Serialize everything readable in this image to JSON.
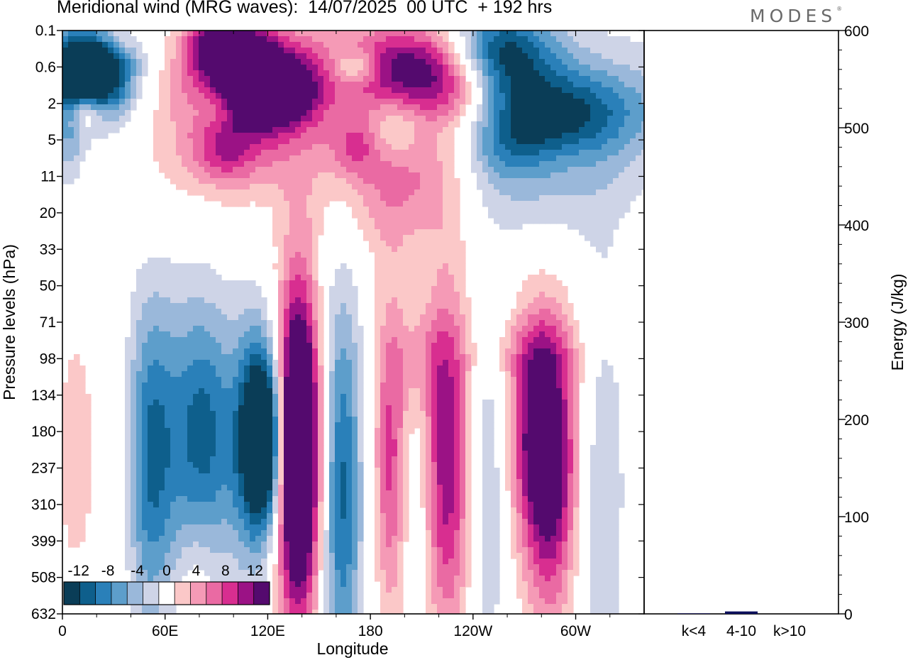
{
  "header": {
    "title": "Meridional wind (MRG waves):  14/07/2025  00 UTC  + 192 hrs",
    "logo": "MODES"
  },
  "chart_data": [
    {
      "type": "heatmap",
      "title": "Meridional wind (MRG waves):  14/07/2025  00 UTC  + 192 hrs",
      "xlabel": "Longitude",
      "ylabel": "Pressure levels (hPa)",
      "x_ticks": [
        "0",
        "60E",
        "120E",
        "180",
        "120W",
        "60W"
      ],
      "x_tick_values": [
        0,
        60,
        120,
        180,
        240,
        300
      ],
      "xlim": [
        0,
        340
      ],
      "y_ticks": [
        "0.1",
        "0.6",
        "2",
        "5",
        "11",
        "20",
        "33",
        "50",
        "71",
        "98",
        "134",
        "180",
        "237",
        "310",
        "399",
        "508",
        "632"
      ],
      "y_scale": "level index (top to bottom)",
      "colorbar": {
        "labels": [
          "-12",
          "-8",
          "-4",
          "0",
          "4",
          "8",
          "12"
        ],
        "levels": [
          -14,
          -12,
          -10,
          -8,
          -6,
          -4,
          -2,
          2,
          4,
          6,
          8,
          10,
          12,
          14
        ],
        "colors": [
          "#0a3d57",
          "#0e5f8c",
          "#2a80b9",
          "#5d9ecb",
          "#9ab8da",
          "#ced4e7",
          "#ffffff",
          "#fbc8c8",
          "#f59ab6",
          "#ea6aa3",
          "#d82e90",
          "#9b1285",
          "#540a6e"
        ]
      },
      "blobs": [
        {
          "lon": 16,
          "lev": 1.3,
          "rlon": 14,
          "rlev": 0.7,
          "v": -13
        },
        {
          "lon": 15,
          "lev": 1.3,
          "rlon": 24,
          "rlev": 1.2,
          "v": -8
        },
        {
          "lon": 20,
          "lev": 0.7,
          "rlon": 18,
          "rlev": 0.6,
          "v": -5
        },
        {
          "lon": 4,
          "lev": 3.0,
          "rlon": 6,
          "rlev": 1.0,
          "v": -4
        },
        {
          "lon": 13,
          "lev": 2.2,
          "rlon": 8,
          "rlev": 0.4,
          "v": 8
        },
        {
          "lon": 30,
          "lev": 0.3,
          "rlon": 10,
          "rlev": 0.3,
          "v": 4
        },
        {
          "lon": 87,
          "lev": 0.4,
          "rlon": 10,
          "rlev": 0.5,
          "v": 9
        },
        {
          "lon": 110,
          "lev": 0.5,
          "rlon": 9,
          "rlev": 0.4,
          "v": 8
        },
        {
          "lon": 100,
          "lev": 1.0,
          "rlon": 34,
          "rlev": 1.1,
          "v": 5
        },
        {
          "lon": 120,
          "lev": 1.6,
          "rlon": 20,
          "rlev": 0.7,
          "v": 12
        },
        {
          "lon": 120,
          "lev": 1.9,
          "rlon": 28,
          "rlev": 1.4,
          "v": 6
        },
        {
          "lon": 90,
          "lev": 2.1,
          "rlon": 10,
          "rlev": 0.4,
          "v": -4
        },
        {
          "lon": 80,
          "lev": 3.0,
          "rlon": 40,
          "rlev": 1.6,
          "v": 3
        },
        {
          "lon": 95,
          "lev": 3.4,
          "rlon": 14,
          "rlev": 0.6,
          "v": 5
        },
        {
          "lon": 170,
          "lev": 3.2,
          "rlon": 10,
          "rlev": 0.6,
          "v": 5
        },
        {
          "lon": 172,
          "lev": 1.0,
          "rlon": 10,
          "rlev": 0.3,
          "v": -6
        },
        {
          "lon": 205,
          "lev": 1.0,
          "rlon": 28,
          "rlev": 0.8,
          "v": 11
        },
        {
          "lon": 235,
          "lev": 1.8,
          "rlon": 20,
          "rlev": 0.7,
          "v": 7
        },
        {
          "lon": 220,
          "lev": 1.4,
          "rlon": 44,
          "rlev": 1.6,
          "v": 4
        },
        {
          "lon": 195,
          "lev": 2.7,
          "rlon": 10,
          "rlev": 0.6,
          "v": -4
        },
        {
          "lon": 203,
          "lev": 3.7,
          "rlon": 28,
          "rlev": 1.1,
          "v": 5
        },
        {
          "lon": 200,
          "lev": 5.0,
          "rlon": 32,
          "rlev": 1.1,
          "v": 3
        },
        {
          "lon": 255,
          "lev": 0.7,
          "rlon": 22,
          "rlev": 1.0,
          "v": -14
        },
        {
          "lon": 285,
          "lev": 2.3,
          "rlon": 36,
          "rlev": 0.8,
          "v": -9
        },
        {
          "lon": 290,
          "lev": 2.1,
          "rlon": 58,
          "rlev": 1.6,
          "v": -5
        },
        {
          "lon": 260,
          "lev": 3.3,
          "rlon": 18,
          "rlev": 0.7,
          "v": -4
        },
        {
          "lon": 265,
          "lev": 4.6,
          "rlon": 42,
          "rlev": 1.0,
          "v": -3
        },
        {
          "lon": 52,
          "lev": 11.6,
          "rlon": 9,
          "rlev": 3.0,
          "v": -6
        },
        {
          "lon": 66,
          "lev": 11.2,
          "rlon": 16,
          "rlev": 3.0,
          "v": -5
        },
        {
          "lon": 84,
          "lev": 11.1,
          "rlon": 12,
          "rlev": 2.6,
          "v": -8
        },
        {
          "lon": 113,
          "lev": 11.3,
          "rlon": 11,
          "rlev": 2.4,
          "v": -11
        },
        {
          "lon": 119,
          "lev": 11.2,
          "rlon": 8,
          "rlev": 1.6,
          "v": -15
        },
        {
          "lon": 137,
          "lev": 11.3,
          "rlon": 8,
          "rlev": 2.6,
          "v": 15
        },
        {
          "lon": 137,
          "lev": 11.6,
          "rlon": 11,
          "rlev": 3.5,
          "v": 9
        },
        {
          "lon": 140,
          "lev": 12.6,
          "rlon": 9,
          "rlev": 4.6,
          "v": 3
        },
        {
          "lon": 163,
          "lev": 12.6,
          "rlon": 8,
          "rlev": 3.5,
          "v": -8
        },
        {
          "lon": 165,
          "lev": 12.5,
          "rlon": 11,
          "rlev": 5.0,
          "v": -3
        },
        {
          "lon": 192,
          "lev": 11.7,
          "rlon": 6,
          "rlev": 2.8,
          "v": 6
        },
        {
          "lon": 192,
          "lev": 11.5,
          "rlon": 12,
          "rlev": 4.0,
          "v": 3
        },
        {
          "lon": 208,
          "lev": 12.7,
          "rlon": 8,
          "rlev": 2.8,
          "v": -4
        },
        {
          "lon": 224,
          "lev": 11.8,
          "rlon": 10,
          "rlev": 3.0,
          "v": 8
        },
        {
          "lon": 226,
          "lev": 12.1,
          "rlon": 13,
          "rlev": 4.2,
          "v": 4
        },
        {
          "lon": 248,
          "lev": 12.4,
          "rlon": 9,
          "rlev": 3.6,
          "v": -5
        },
        {
          "lon": 280,
          "lev": 11.0,
          "rlon": 12,
          "rlev": 2.0,
          "v": 11
        },
        {
          "lon": 283,
          "lev": 12.0,
          "rlon": 14,
          "rlev": 3.2,
          "v": 6
        },
        {
          "lon": 286,
          "lev": 13.5,
          "rlon": 9,
          "rlev": 2.2,
          "v": 4
        },
        {
          "lon": 315,
          "lev": 12.6,
          "rlon": 10,
          "rlev": 4.5,
          "v": -4
        },
        {
          "lon": 8,
          "lev": 11.6,
          "rlon": 8,
          "rlev": 2.3,
          "v": 4
        },
        {
          "lon": 34,
          "lev": 13.0,
          "rlon": 8,
          "rlev": 3.5,
          "v": 3
        },
        {
          "lon": 40,
          "lev": 13.1,
          "rlon": 12,
          "rlev": 3.8,
          "v": -3
        },
        {
          "lon": 78,
          "lev": 15.5,
          "rlon": 8,
          "rlev": 1.6,
          "v": 3
        },
        {
          "lon": 210,
          "lev": 9.0,
          "rlon": 12,
          "rlev": 1.0,
          "v": 3
        },
        {
          "lon": 273,
          "lev": 8.8,
          "rlon": 26,
          "rlev": 0.7,
          "v": 3
        }
      ]
    },
    {
      "type": "bar",
      "categories": [
        "k<4",
        "4-10",
        "k>10"
      ],
      "values": [
        0.5,
        2.5,
        0
      ],
      "ylabel": "Energy (J/kg)",
      "y_ticks": [
        "0",
        "100",
        "200",
        "300",
        "400",
        "500",
        "600"
      ],
      "ylim": [
        0,
        600
      ],
      "bar_color": "#0c0f5c"
    }
  ]
}
